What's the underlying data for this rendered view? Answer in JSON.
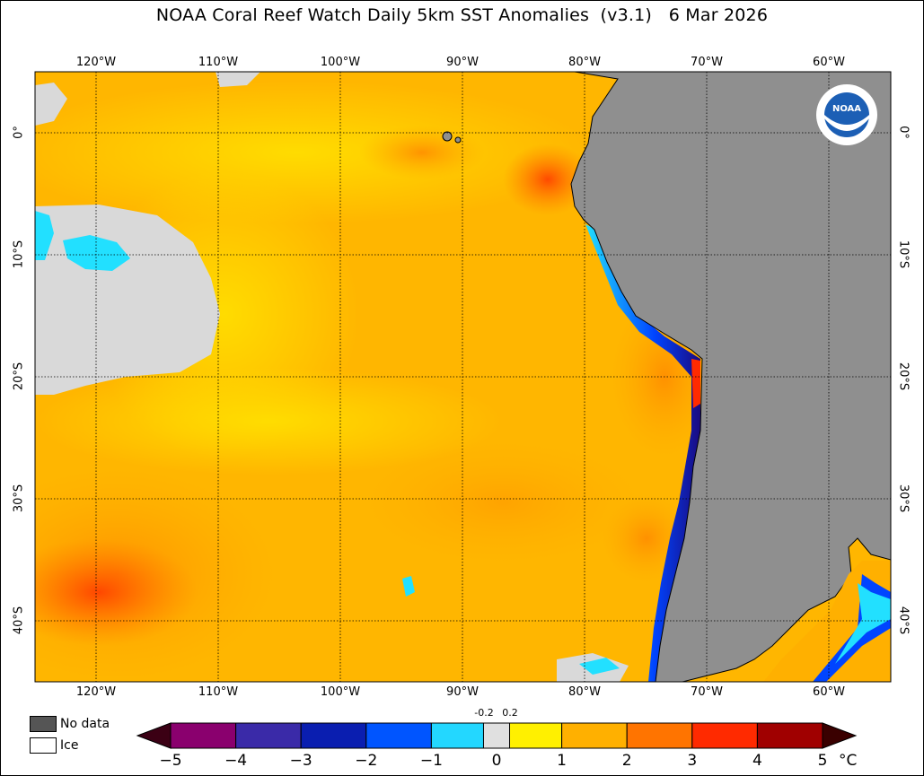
{
  "title": "NOAA Coral Reef Watch Daily 5km SST Anomalies  (v3.1)   6 Mar 2026",
  "map": {
    "lon_labels": [
      "120°W",
      "110°W",
      "100°W",
      "90°W",
      "80°W",
      "70°W",
      "60°W"
    ],
    "lat_labels": [
      "0°",
      "10°S",
      "20°S",
      "30°S",
      "40°S"
    ],
    "colors": {
      "land": "#8f8f8f",
      "no_data": "#d9d9d9",
      "anomaly_low": "#ffd400",
      "anomaly_mid": "#ffb300",
      "anomaly_high": "#ff7a00",
      "anomaly_hot": "#ff3d00",
      "cold": "#22e0ff",
      "very_cold": "#0033ff"
    },
    "logo_text": "NOAA"
  },
  "legend": {
    "no_data_label": "No data",
    "ice_label": "Ice",
    "no_data_color": "#555555",
    "ice_color": "#ffffff"
  },
  "colorbar": {
    "ticks": [
      "−5",
      "−4",
      "−3",
      "−2",
      "−1",
      "0",
      "1",
      "2",
      "3",
      "4",
      "5"
    ],
    "small_ticks": [
      "-0.2",
      "0.2"
    ],
    "unit": "°C",
    "colors": [
      "#3b0014",
      "#8a006e",
      "#3a2aa8",
      "#0a1eb0",
      "#0055ff",
      "#23d7ff",
      "#e0e0e0",
      "#fff000",
      "#ffb000",
      "#ff7400",
      "#ff2a00",
      "#a00000",
      "#3a0000"
    ]
  }
}
